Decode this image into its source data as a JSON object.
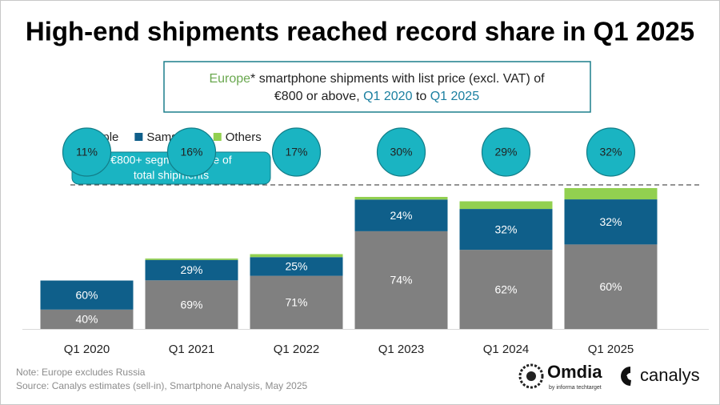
{
  "chart_data": {
    "type": "bar",
    "stacked": true,
    "title": "High-end shipments reached record share in Q1 2025",
    "subtitle_lines": [
      [
        "Europe",
        "* smartphone shipments with list price (excl. VAT) of"
      ],
      [
        "€800 or above, ",
        "Q1 2020",
        " to ",
        "Q1 2025"
      ]
    ],
    "callout": [
      "€800+ segment share of",
      "total shipments"
    ],
    "categories": [
      "Q1 2020",
      "Q1 2021",
      "Q1 2022",
      "Q1 2023",
      "Q1 2024",
      "Q1 2025"
    ],
    "shares": [
      11,
      16,
      17,
      30,
      29,
      32
    ],
    "share_labels": [
      "11%",
      "16%",
      "17%",
      "30%",
      "29%",
      "32%"
    ],
    "share_color": "#1ab4c2",
    "series": [
      {
        "name": "Apple",
        "color": "#808080",
        "values": [
          40,
          69,
          71,
          74,
          62,
          60
        ],
        "value_labels": [
          "40%",
          "69%",
          "71%",
          "74%",
          "62%",
          "60%"
        ]
      },
      {
        "name": "Samsung",
        "color": "#0f5f8a",
        "values": [
          60,
          29,
          25,
          24,
          32,
          32
        ],
        "value_labels": [
          "60%",
          "29%",
          "25%",
          "24%",
          "32%",
          "32%"
        ]
      },
      {
        "name": "Others",
        "color": "#92d050",
        "values": [
          0,
          2,
          4,
          2,
          6,
          8
        ]
      }
    ],
    "notes": [
      "Note: Europe excludes Russia",
      "Source: Canalys estimates (sell-in), Smartphone Analysis, May 2025"
    ],
    "logos": [
      "Omdia",
      "by informa techtarget",
      "canalys"
    ]
  }
}
